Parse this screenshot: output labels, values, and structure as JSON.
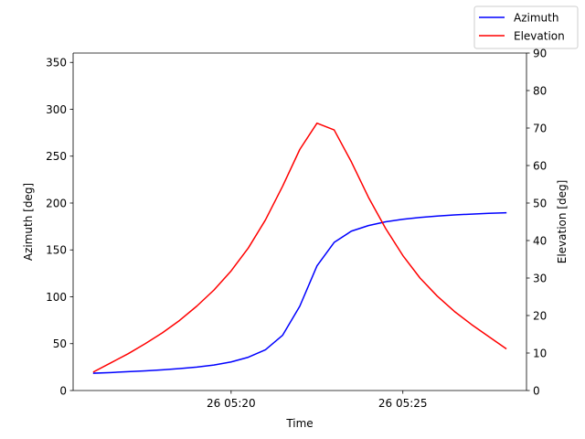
{
  "chart_data": {
    "type": "line",
    "xlabel": "Time",
    "x_ticks": [
      "26 05:20",
      "26 05:25"
    ],
    "y_left": {
      "label": "Azimuth [deg]",
      "lim": [
        0,
        360
      ],
      "ticks": [
        0,
        50,
        100,
        150,
        200,
        250,
        300,
        350
      ]
    },
    "y_right": {
      "label": "Elevation [deg]",
      "lim": [
        0,
        90
      ],
      "ticks": [
        0,
        10,
        20,
        30,
        40,
        50,
        60,
        70,
        80,
        90
      ]
    },
    "x_times": [
      "05:16:00",
      "05:16:30",
      "05:17:00",
      "05:17:30",
      "05:18:00",
      "05:18:30",
      "05:19:00",
      "05:19:30",
      "05:20:00",
      "05:20:30",
      "05:21:00",
      "05:21:30",
      "05:22:00",
      "05:22:30",
      "05:23:00",
      "05:23:30",
      "05:24:00",
      "05:24:30",
      "05:25:00",
      "05:25:30",
      "05:26:00",
      "05:26:30",
      "05:27:00",
      "05:27:30",
      "05:28:00"
    ],
    "series": [
      {
        "name": "Azimuth",
        "axis": "left",
        "color": "#0000ff",
        "values": [
          18.5,
          19.2,
          20.1,
          21.0,
          22.1,
          23.4,
          25.0,
          27.2,
          30.5,
          35.5,
          43.5,
          59.0,
          90.0,
          133.0,
          158.0,
          170.0,
          176.0,
          180.0,
          182.7,
          184.6,
          186.1,
          187.3,
          188.2,
          189.0,
          189.6
        ]
      },
      {
        "name": "Elevation",
        "axis": "right",
        "color": "#ff0000",
        "values": [
          5.0,
          7.4,
          9.8,
          12.5,
          15.4,
          18.7,
          22.5,
          26.8,
          31.9,
          38.0,
          45.5,
          54.5,
          64.3,
          71.3,
          69.5,
          61.0,
          51.5,
          43.2,
          36.0,
          30.0,
          25.2,
          21.1,
          17.6,
          14.4,
          11.2
        ]
      }
    ],
    "legend": {
      "placement": "top-right",
      "entries": [
        "Azimuth",
        "Elevation"
      ]
    },
    "grid": false
  }
}
